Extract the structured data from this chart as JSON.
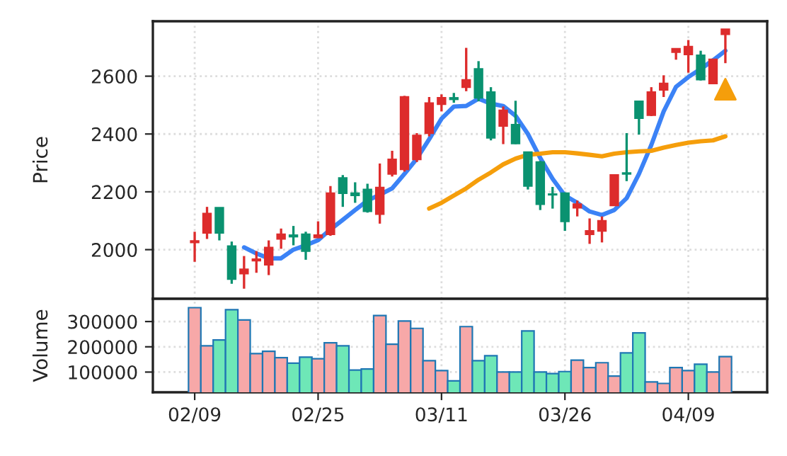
{
  "chart_data": [
    {
      "type": "candlestick",
      "ylabel": "Price",
      "tick_labels": "y",
      "grid": true,
      "ylim": [
        1830,
        2790
      ],
      "yticks": [
        2000,
        2200,
        2400,
        2600
      ],
      "categories": [
        null,
        null,
        null,
        null,
        null,
        null,
        null,
        null,
        null,
        null,
        null,
        null,
        null,
        null,
        null,
        null,
        null,
        null,
        null,
        null,
        null,
        null,
        null,
        null,
        null,
        null,
        null,
        null,
        null,
        null,
        null,
        null,
        null,
        null,
        null,
        null,
        null,
        null,
        null,
        null,
        null,
        null,
        null,
        null
      ],
      "ohlc": [
        [
          2025,
          2062,
          1958,
          2030
        ],
        [
          2058,
          2148,
          2037,
          2125
        ],
        [
          2145,
          2145,
          2032,
          2058
        ],
        [
          2012,
          2028,
          1882,
          1898
        ],
        [
          1917,
          1978,
          1865,
          1932
        ],
        [
          1962,
          1995,
          1920,
          1967
        ],
        [
          1948,
          2032,
          1912,
          2007
        ],
        [
          2037,
          2073,
          2003,
          2053
        ],
        [
          2050,
          2082,
          2015,
          2045
        ],
        [
          2053,
          2062,
          1965,
          1995
        ],
        [
          2042,
          2098,
          2040,
          2050
        ],
        [
          2053,
          2220,
          2048,
          2195
        ],
        [
          2248,
          2258,
          2148,
          2195
        ],
        [
          2195,
          2233,
          2162,
          2188
        ],
        [
          2208,
          2228,
          2128,
          2133
        ],
        [
          2123,
          2298,
          2090,
          2215
        ],
        [
          2262,
          2342,
          2253,
          2312
        ],
        [
          2278,
          2532,
          2270,
          2528
        ],
        [
          2312,
          2403,
          2303,
          2395
        ],
        [
          2403,
          2528,
          2392,
          2507
        ],
        [
          2503,
          2537,
          2478,
          2525
        ],
        [
          2525,
          2542,
          2508,
          2520
        ],
        [
          2562,
          2698,
          2548,
          2587
        ],
        [
          2625,
          2652,
          2513,
          2525
        ],
        [
          2545,
          2562,
          2378,
          2387
        ],
        [
          2428,
          2495,
          2365,
          2482
        ],
        [
          2432,
          2515,
          2365,
          2367
        ],
        [
          2337,
          2337,
          2208,
          2220
        ],
        [
          2303,
          2307,
          2137,
          2157
        ],
        [
          2192,
          2217,
          2142,
          2190
        ],
        [
          2195,
          2198,
          2065,
          2098
        ],
        [
          2145,
          2170,
          2115,
          2157
        ],
        [
          2053,
          2108,
          2020,
          2065
        ],
        [
          2065,
          2115,
          2025,
          2100
        ],
        [
          2153,
          2260,
          2153,
          2258
        ],
        [
          2265,
          2403,
          2237,
          2262
        ],
        [
          2513,
          2513,
          2398,
          2455
        ],
        [
          2465,
          2562,
          2462,
          2545
        ],
        [
          2553,
          2603,
          2528,
          2575
        ],
        [
          2683,
          2695,
          2657,
          2695
        ],
        [
          2675,
          2725,
          2612,
          2702
        ],
        [
          2672,
          2688,
          2585,
          2588
        ],
        [
          2575,
          2658,
          2575,
          2658
        ],
        [
          2745,
          2762,
          2645,
          2762
        ]
      ],
      "colors": [
        "#dd2c2c",
        "#dd2c2c",
        "#0a9270",
        "#0a9270",
        "#dd2c2c",
        "#dd2c2c",
        "#dd2c2c",
        "#dd2c2c",
        "#0a9270",
        "#0a9270",
        "#dd2c2c",
        "#dd2c2c",
        "#0a9270",
        "#0a9270",
        "#0a9270",
        "#dd2c2c",
        "#dd2c2c",
        "#dd2c2c",
        "#dd2c2c",
        "#dd2c2c",
        "#dd2c2c",
        "#0a9270",
        "#dd2c2c",
        "#0a9270",
        "#0a9270",
        "#dd2c2c",
        "#0a9270",
        "#0a9270",
        "#0a9270",
        "#0a9270",
        "#0a9270",
        "#dd2c2c",
        "#dd2c2c",
        "#dd2c2c",
        "#dd2c2c",
        "#0a9270",
        "#0a9270",
        "#dd2c2c",
        "#dd2c2c",
        "#dd2c2c",
        "#dd2c2c",
        "#0a9270",
        "#dd2c2c",
        "#dd2c2c"
      ],
      "series": [
        {
          "type": "line",
          "color": "#3b82f6",
          "values": [
            null,
            null,
            null,
            null,
            2008,
            1987,
            1970,
            1970,
            2000,
            2015,
            2033,
            2070,
            2103,
            2137,
            2170,
            2190,
            2212,
            2262,
            2315,
            2382,
            2453,
            2495,
            2497,
            2522,
            2505,
            2497,
            2463,
            2400,
            2317,
            2245,
            2187,
            2162,
            2132,
            2120,
            2137,
            2178,
            2262,
            2362,
            2478,
            2563,
            2597,
            2625,
            2655,
            2688
          ]
        },
        {
          "type": "line",
          "color": "#f59e0b",
          "values": [
            null,
            null,
            null,
            null,
            null,
            null,
            null,
            null,
            null,
            null,
            null,
            null,
            null,
            null,
            null,
            null,
            null,
            null,
            null,
            2142,
            2162,
            2187,
            2212,
            2242,
            2267,
            2295,
            2315,
            2328,
            2332,
            2337,
            2337,
            2333,
            2328,
            2323,
            2332,
            2337,
            2340,
            2342,
            2353,
            2362,
            2370,
            2375,
            2378,
            2392
          ]
        },
        {
          "type": "scatter",
          "marker": "triangle",
          "color": "#f59e0b",
          "values": [
            null,
            null,
            null,
            null,
            null,
            null,
            null,
            null,
            null,
            null,
            null,
            null,
            null,
            null,
            null,
            null,
            null,
            null,
            null,
            null,
            null,
            null,
            null,
            null,
            null,
            null,
            null,
            null,
            null,
            null,
            null,
            null,
            null,
            null,
            null,
            null,
            null,
            null,
            null,
            null,
            null,
            null,
            null,
            2555
          ]
        }
      ]
    },
    {
      "type": "bar",
      "ylabel": "Volume",
      "grid": true,
      "ylim": [
        20000,
        390000
      ],
      "yticks": [
        100000,
        200000,
        300000
      ],
      "categories": [
        "02/09",
        null,
        null,
        null,
        null,
        null,
        null,
        null,
        null,
        null,
        "02/25",
        null,
        null,
        null,
        null,
        null,
        null,
        null,
        null,
        null,
        "03/11",
        null,
        null,
        null,
        null,
        null,
        null,
        null,
        null,
        null,
        "03/26",
        null,
        null,
        null,
        null,
        null,
        null,
        null,
        null,
        null,
        "04/09",
        null,
        null,
        null
      ],
      "values": [
        355000,
        204000,
        227000,
        347000,
        306000,
        173000,
        182000,
        157000,
        135000,
        159000,
        153000,
        216000,
        204000,
        108000,
        112000,
        324000,
        210000,
        302000,
        273000,
        145000,
        106000,
        65000,
        280000,
        145000,
        165000,
        100000,
        100000,
        263000,
        100000,
        94000,
        102000,
        147000,
        118000,
        137000,
        84000,
        176000,
        255000,
        61000,
        55000,
        118000,
        106000,
        131000,
        100000,
        161000
      ],
      "colors": [
        "#f7a8a8",
        "#f7a8a8",
        "#6ee7b7",
        "#6ee7b7",
        "#f7a8a8",
        "#f7a8a8",
        "#f7a8a8",
        "#f7a8a8",
        "#6ee7b7",
        "#6ee7b7",
        "#f7a8a8",
        "#f7a8a8",
        "#6ee7b7",
        "#6ee7b7",
        "#6ee7b7",
        "#f7a8a8",
        "#f7a8a8",
        "#f7a8a8",
        "#f7a8a8",
        "#f7a8a8",
        "#f7a8a8",
        "#6ee7b7",
        "#f7a8a8",
        "#6ee7b7",
        "#6ee7b7",
        "#f7a8a8",
        "#6ee7b7",
        "#6ee7b7",
        "#6ee7b7",
        "#6ee7b7",
        "#6ee7b7",
        "#f7a8a8",
        "#f7a8a8",
        "#f7a8a8",
        "#f7a8a8",
        "#6ee7b7",
        "#6ee7b7",
        "#f7a8a8",
        "#f7a8a8",
        "#f7a8a8",
        "#f7a8a8",
        "#6ee7b7",
        "#f7a8a8",
        "#f7a8a8"
      ]
    }
  ]
}
